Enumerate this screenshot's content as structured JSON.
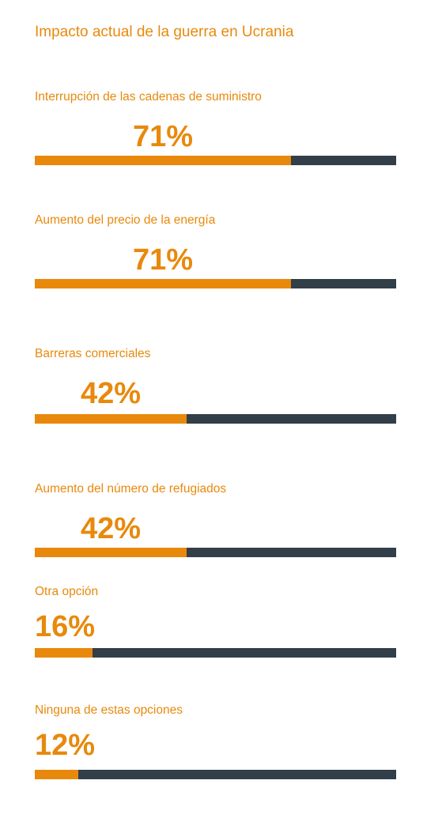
{
  "chart_data": {
    "type": "bar",
    "title": "Impacto actual de la guerra en Ucrania",
    "categories": [
      "Interrupción de las cadenas de suministro",
      "Aumento del precio de la energía",
      "Barreras comerciales",
      "Aumento del número de refugiados",
      "Otra opción",
      "Ninguna de estas opciones"
    ],
    "values": [
      71,
      71,
      42,
      42,
      16,
      12
    ],
    "value_labels": [
      "71%",
      "71%",
      "42%",
      "42%",
      "16%",
      "12%"
    ],
    "ylim": [
      0,
      100
    ],
    "orientation": "horizontal",
    "grid": false
  },
  "colors": {
    "accent": "#E8890C",
    "track": "#323E48",
    "background": "#FFFFFF"
  }
}
